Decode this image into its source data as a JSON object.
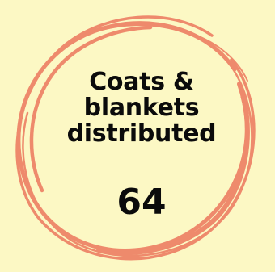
{
  "stat": {
    "label_lines": [
      "Coats &",
      "blankets",
      "distributed"
    ],
    "value": "64"
  },
  "colors": {
    "background": "#fcf8c4",
    "ring": "#ee8a6c",
    "text": "#0b0b0b"
  }
}
